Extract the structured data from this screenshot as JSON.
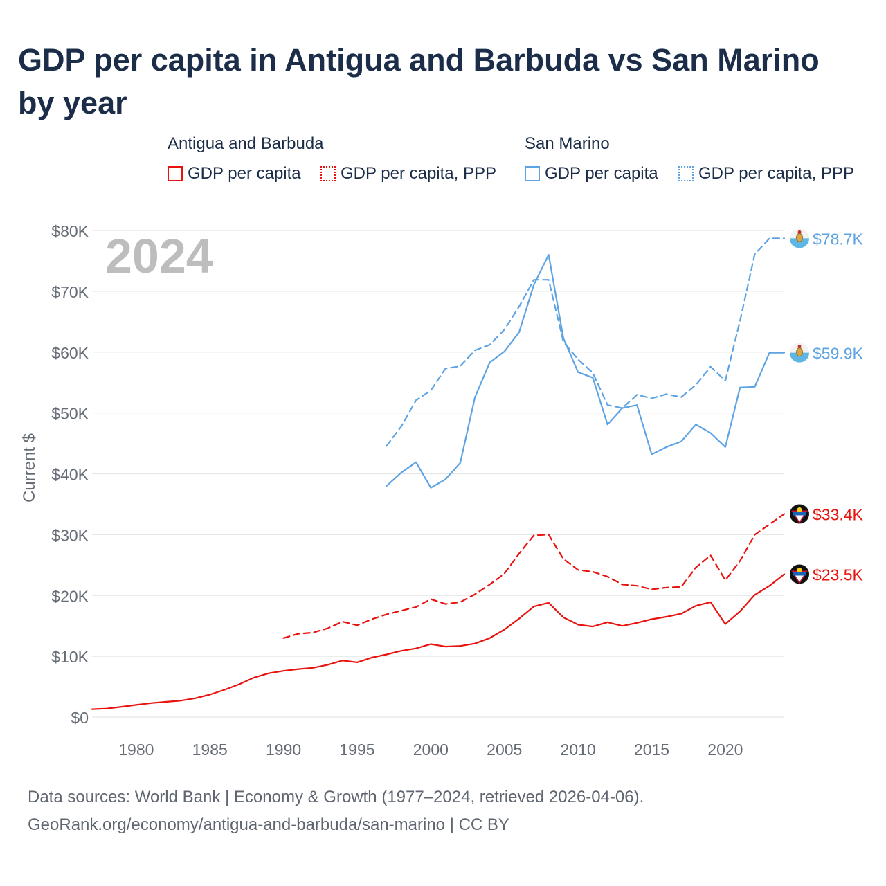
{
  "title": "GDP per capita in Antigua and Barbuda vs San Marino by year",
  "legend": {
    "groups": [
      {
        "name": "Antigua and Barbuda",
        "items": [
          "GDP per capita",
          "GDP per capita, PPP"
        ]
      },
      {
        "name": "San Marino",
        "items": [
          "GDP per capita",
          "GDP per capita, PPP"
        ]
      }
    ]
  },
  "footer": {
    "sources": "Data sources: World Bank | Economy & Growth (1977–2024, retrieved 2026-04-06).",
    "link": "GeoRank.org/economy/antigua-and-barbuda/san-marino | CC BY"
  },
  "colors": {
    "antigua": "#e8120f",
    "san_marino": "#5ea3e3",
    "grid": "#e6e6e6",
    "axis_text": "#666c75",
    "year_watermark": "#bdbdbd"
  },
  "chart_data": {
    "type": "line",
    "title": "GDP per capita in Antigua and Barbuda vs San Marino by year",
    "ylabel": "Current $",
    "xlabel": "",
    "year_label": "2024",
    "xlim": [
      1977,
      2024
    ],
    "ylim": [
      0,
      80000
    ],
    "x_ticks": [
      1980,
      1985,
      1990,
      1995,
      2000,
      2005,
      2010,
      2015,
      2020
    ],
    "y_ticks": [
      0,
      10000,
      20000,
      30000,
      40000,
      50000,
      60000,
      70000,
      80000
    ],
    "y_tick_labels": [
      "$0",
      "$10K",
      "$20K",
      "$30K",
      "$40K",
      "$50K",
      "$60K",
      "$70K",
      "$80K"
    ],
    "series": [
      {
        "name": "Antigua and Barbuda GDP per capita",
        "country": "antigua",
        "style": "solid",
        "end_label": "$23.5K",
        "x": [
          1977,
          1978,
          1979,
          1980,
          1981,
          1982,
          1983,
          1984,
          1985,
          1986,
          1987,
          1988,
          1989,
          1990,
          1991,
          1992,
          1993,
          1994,
          1995,
          1996,
          1997,
          1998,
          1999,
          2000,
          2001,
          2002,
          2003,
          2004,
          2005,
          2006,
          2007,
          2008,
          2009,
          2010,
          2011,
          2012,
          2013,
          2014,
          2015,
          2016,
          2017,
          2018,
          2019,
          2020,
          2021,
          2022,
          2023,
          2024
        ],
        "values": [
          1300,
          1400,
          1700,
          2000,
          2300,
          2500,
          2700,
          3100,
          3700,
          4500,
          5400,
          6500,
          7200,
          7600,
          7900,
          8100,
          8600,
          9300,
          9000,
          9800,
          10300,
          10900,
          11300,
          12000,
          11600,
          11700,
          12100,
          13000,
          14400,
          16200,
          18200,
          18800,
          16400,
          15200,
          14900,
          15600,
          15000,
          15500,
          16100,
          16500,
          17000,
          18300,
          18900,
          15300,
          17400,
          20100,
          21600,
          23500
        ]
      },
      {
        "name": "Antigua and Barbuda GDP per capita, PPP",
        "country": "antigua",
        "style": "dashed",
        "end_label": "$33.4K",
        "x": [
          1990,
          1991,
          1992,
          1993,
          1994,
          1995,
          1996,
          1997,
          1998,
          1999,
          2000,
          2001,
          2002,
          2003,
          2004,
          2005,
          2006,
          2007,
          2008,
          2009,
          2010,
          2011,
          2012,
          2013,
          2014,
          2015,
          2016,
          2017,
          2018,
          2019,
          2020,
          2021,
          2022,
          2023,
          2024
        ],
        "values": [
          13000,
          13700,
          13900,
          14600,
          15700,
          15100,
          16100,
          16900,
          17500,
          18100,
          19400,
          18600,
          18900,
          20200,
          21800,
          23600,
          26900,
          29900,
          30000,
          26000,
          24200,
          23900,
          23100,
          21800,
          21600,
          21000,
          21300,
          21400,
          24600,
          26600,
          22500,
          25700,
          30000,
          31700,
          33400
        ]
      },
      {
        "name": "San Marino GDP per capita",
        "country": "san_marino",
        "style": "solid",
        "end_label": "$59.9K",
        "x": [
          1997,
          1998,
          1999,
          2000,
          2001,
          2002,
          2003,
          2004,
          2005,
          2006,
          2007,
          2008,
          2009,
          2010,
          2011,
          2012,
          2013,
          2014,
          2015,
          2016,
          2017,
          2018,
          2019,
          2020,
          2021,
          2022,
          2023,
          2024
        ],
        "values": [
          38000,
          40200,
          41900,
          37700,
          39100,
          41800,
          52600,
          58300,
          60100,
          63300,
          71100,
          76000,
          62300,
          56700,
          55800,
          48100,
          50800,
          51300,
          43200,
          44400,
          45300,
          48100,
          46700,
          44400,
          54200,
          54300,
          59900,
          59900
        ]
      },
      {
        "name": "San Marino GDP per capita, PPP",
        "country": "san_marino",
        "style": "dotted",
        "end_label": "$78.7K",
        "x": [
          1997,
          1998,
          1999,
          2000,
          2001,
          2002,
          2003,
          2004,
          2005,
          2006,
          2007,
          2008,
          2009,
          2010,
          2011,
          2012,
          2013,
          2014,
          2015,
          2016,
          2017,
          2018,
          2019,
          2020,
          2021,
          2022,
          2023,
          2024
        ],
        "values": [
          44600,
          47800,
          52100,
          53700,
          57300,
          57700,
          60300,
          61200,
          63700,
          67500,
          71900,
          71900,
          61700,
          58800,
          56600,
          51300,
          50800,
          53000,
          52400,
          53100,
          52600,
          54600,
          57600,
          55300,
          65200,
          76100,
          78700,
          78700
        ]
      }
    ]
  }
}
